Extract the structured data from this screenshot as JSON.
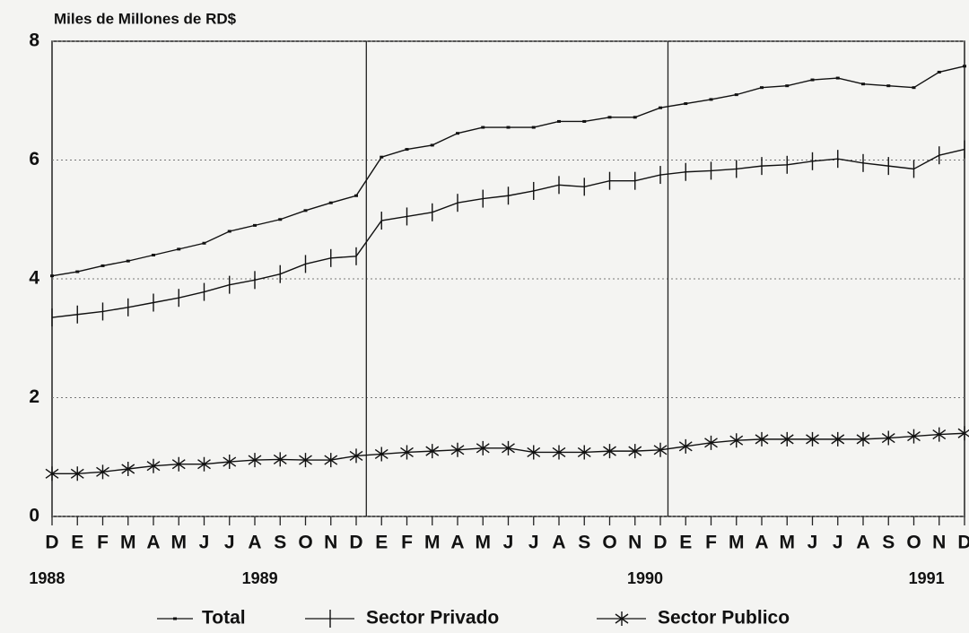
{
  "chart_data": {
    "type": "line",
    "title": "Miles de Millones de RD$",
    "categories": [
      "D",
      "E",
      "F",
      "M",
      "A",
      "M",
      "J",
      "J",
      "A",
      "S",
      "O",
      "N",
      "D",
      "E",
      "F",
      "M",
      "A",
      "M",
      "J",
      "J",
      "A",
      "S",
      "O",
      "N",
      "D",
      "E",
      "F",
      "M",
      "A",
      "M",
      "J",
      "J",
      "A",
      "S",
      "O",
      "N",
      "D"
    ],
    "year_labels": [
      "1988",
      "1989",
      "1990",
      "1991"
    ],
    "series": [
      {
        "name": "Total",
        "color": "#111111",
        "marker": "dot",
        "values": [
          4.05,
          4.12,
          4.22,
          4.3,
          4.4,
          4.5,
          4.6,
          4.8,
          4.9,
          5.0,
          5.15,
          5.28,
          5.4,
          6.05,
          6.18,
          6.25,
          6.45,
          6.55,
          6.55,
          6.55,
          6.65,
          6.65,
          6.72,
          6.72,
          6.88,
          6.95,
          7.02,
          7.1,
          7.22,
          7.25,
          7.35,
          7.38,
          7.28,
          7.25,
          7.22,
          7.48,
          7.58
        ]
      },
      {
        "name": "Sector Privado",
        "color": "#111111",
        "marker": "tick",
        "values": [
          3.35,
          3.4,
          3.45,
          3.52,
          3.6,
          3.68,
          3.78,
          3.9,
          3.98,
          4.08,
          4.25,
          4.35,
          4.38,
          4.98,
          5.05,
          5.12,
          5.28,
          5.35,
          5.4,
          5.48,
          5.58,
          5.55,
          5.65,
          5.65,
          5.75,
          5.8,
          5.82,
          5.85,
          5.9,
          5.92,
          5.98,
          6.02,
          5.95,
          5.9,
          5.85,
          6.08,
          6.18
        ]
      },
      {
        "name": "Sector Publico",
        "color": "#111111",
        "marker": "asterisk",
        "values": [
          0.72,
          0.72,
          0.75,
          0.8,
          0.85,
          0.88,
          0.88,
          0.92,
          0.95,
          0.96,
          0.95,
          0.95,
          1.02,
          1.05,
          1.08,
          1.1,
          1.12,
          1.15,
          1.15,
          1.08,
          1.08,
          1.08,
          1.1,
          1.1,
          1.12,
          1.18,
          1.24,
          1.28,
          1.3,
          1.3,
          1.3,
          1.3,
          1.3,
          1.32,
          1.35,
          1.38,
          1.4
        ]
      }
    ],
    "ylim": [
      0,
      8
    ],
    "yticks": [
      0,
      2,
      4,
      6,
      8
    ],
    "grid": true
  }
}
